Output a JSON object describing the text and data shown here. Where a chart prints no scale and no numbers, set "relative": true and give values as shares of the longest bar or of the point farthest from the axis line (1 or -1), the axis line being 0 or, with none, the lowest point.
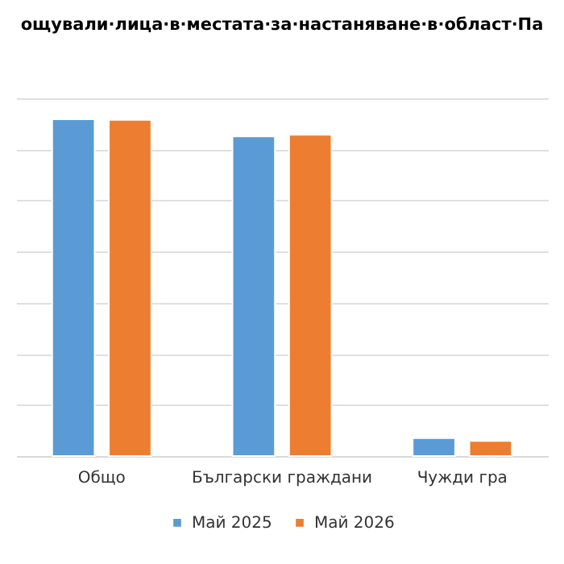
{
  "chart_data": {
    "type": "bar",
    "title": "ощували·лица·в·местата·за·настаняване·в·област·Па",
    "categories": [
      "Общо",
      "Български граждани",
      "Чужди гра"
    ],
    "series": [
      {
        "name": "Май 2025",
        "color": "#5b9bd5",
        "values": [
          1,
          0.949,
          0.053
        ]
      },
      {
        "name": "Май 2026",
        "color": "#ed7d31",
        "values": [
          0.998,
          0.954,
          0.045
        ]
      }
    ],
    "relative": true,
    "grid": "y",
    "legend": "bottom"
  }
}
